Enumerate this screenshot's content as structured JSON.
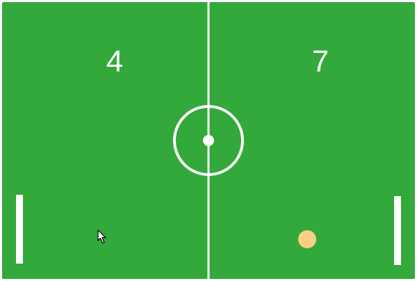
{
  "scoreboard": {
    "left_score": "4",
    "right_score": "7"
  },
  "colors": {
    "field": "#33a83b",
    "lines": "#ffffff",
    "paddles": "#ffffff",
    "ball": "#f8cf85"
  }
}
